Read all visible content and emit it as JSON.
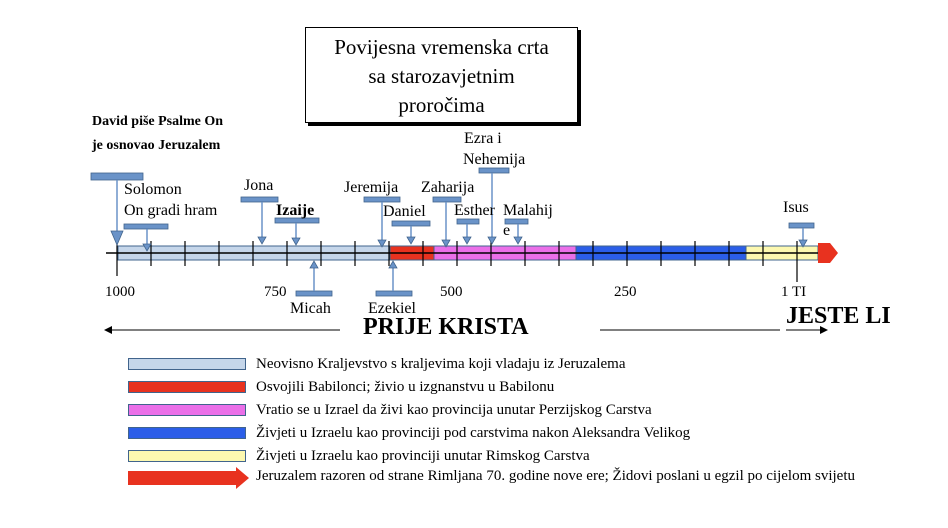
{
  "title": {
    "line1": "Povijesna vremenska crta",
    "line2": "sa starozavjetnim",
    "line3": "proročima"
  },
  "david_note": {
    "line1": "David piše Psalme On",
    "line2": "je osnovao Jeruzalem"
  },
  "labels": {
    "solomon": "Solomon",
    "solomon_sub": "On gradi hram",
    "jona": "Jona",
    "izaije": "Izaije",
    "micah": "Micah",
    "jeremija": "Jeremija",
    "daniel": "Daniel",
    "ezekiel": "Ezekiel",
    "zaharija": "Zaharija",
    "esther": "Esther",
    "ezra1": "Ezra i",
    "ezra2": "Nehemija",
    "malahij1": "Malahij",
    "malahij2": "e",
    "isus": "Isus"
  },
  "axis_ticks": {
    "t1000": "1000",
    "t750": "750",
    "t500": "500",
    "t250": "250",
    "t1": "1 TI"
  },
  "directions": {
    "before": "PRIJE KRISTA",
    "after": "JESTE LI"
  },
  "legend": [
    {
      "color": "#c5d6ea",
      "text": "Neovisno Kraljevstvo s kraljevima koji vladaju iz Jeruzalema"
    },
    {
      "color": "#e8321f",
      "text": "Osvojili Babilonci; živio u izgnanstvu u Babilonu"
    },
    {
      "color": "#ea6fe8",
      "text": "Vratio se u Izrael da živi kao provincija unutar Perzijskog Carstva"
    },
    {
      "color": "#2b5ee8",
      "text": "Živjeti u Izraelu kao provinciji pod carstvima nakon Aleksandra Velikog"
    },
    {
      "color": "#fcf8b0",
      "text": "Živjeti u Izraelu kao provinciji unutar Rimskog Carstva"
    },
    {
      "color": "#e8321f",
      "text": "Jeruzalem razoren od strane Rimljana 70. godine nove ere; Židovi poslani u egzil po cijelom svijetu"
    }
  ],
  "colors": {
    "kingdom": "#c5d6ea",
    "babylon": "#e8321f",
    "persia": "#ea6fe8",
    "greek": "#2b5ee8",
    "rome": "#fcf8b0",
    "marker": "#6a93c8"
  }
}
